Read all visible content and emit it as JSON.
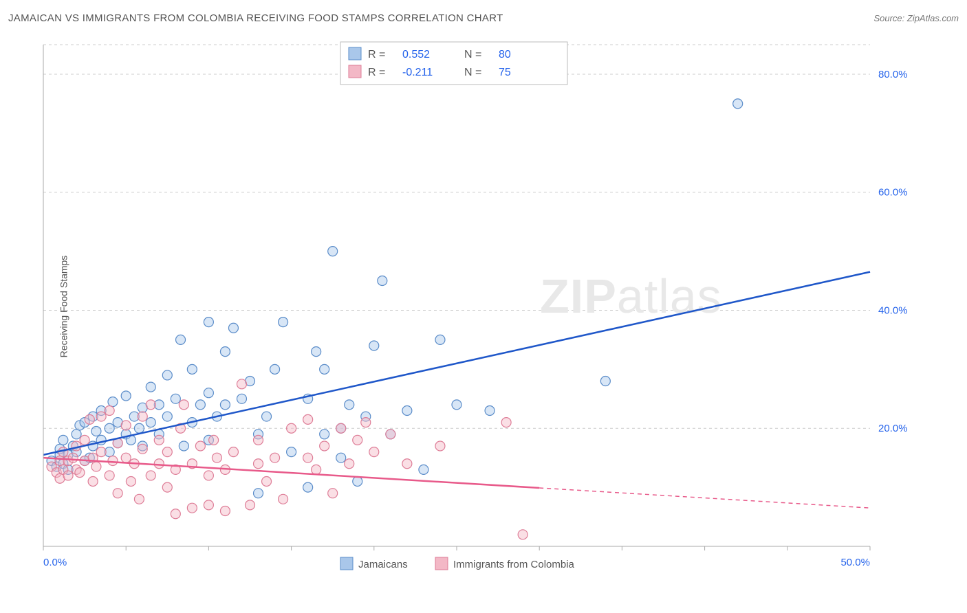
{
  "title": "JAMAICAN VS IMMIGRANTS FROM COLOMBIA RECEIVING FOOD STAMPS CORRELATION CHART",
  "source": "Source: ZipAtlas.com",
  "watermark": {
    "bold": "ZIP",
    "rest": "atlas"
  },
  "y_axis_label": "Receiving Food Stamps",
  "chart": {
    "type": "scatter",
    "xlim": [
      0,
      50
    ],
    "ylim": [
      0,
      85
    ],
    "x_ticks": [
      0,
      5,
      10,
      15,
      20,
      25,
      30,
      35,
      40,
      45,
      50
    ],
    "x_tick_labels": {
      "0": "0.0%",
      "50": "50.0%"
    },
    "y_ticks": [
      20,
      40,
      60,
      80
    ],
    "y_tick_labels": [
      "20.0%",
      "40.0%",
      "60.0%",
      "80.0%"
    ],
    "grid_color": "#cccccc",
    "background_color": "#ffffff",
    "marker_radius": 7,
    "series": [
      {
        "id": "jamaicans",
        "label": "Jamaicans",
        "color_fill": "#a9c7ea",
        "color_stroke": "#5a8cc9",
        "trend_color": "#1f57c9",
        "R": "0.552",
        "N": "80",
        "trend": {
          "x1": 0,
          "y1": 15.5,
          "x2": 50,
          "y2": 46.5,
          "solid_until_x": 50
        },
        "points": [
          [
            0.5,
            14.5
          ],
          [
            0.8,
            13.5
          ],
          [
            1,
            15.5
          ],
          [
            1,
            16.5
          ],
          [
            1.2,
            14
          ],
          [
            1.2,
            18
          ],
          [
            1.5,
            13
          ],
          [
            1.5,
            15.5
          ],
          [
            1.8,
            17
          ],
          [
            2,
            16
          ],
          [
            2,
            19
          ],
          [
            2.2,
            20.5
          ],
          [
            2.5,
            14.5
          ],
          [
            2.5,
            21
          ],
          [
            2.8,
            15
          ],
          [
            3,
            17
          ],
          [
            3,
            22
          ],
          [
            3.2,
            19.5
          ],
          [
            3.5,
            18
          ],
          [
            3.5,
            23
          ],
          [
            4,
            20
          ],
          [
            4,
            16
          ],
          [
            4.2,
            24.5
          ],
          [
            4.5,
            17.5
          ],
          [
            4.5,
            21
          ],
          [
            5,
            19
          ],
          [
            5,
            25.5
          ],
          [
            5.3,
            18
          ],
          [
            5.5,
            22
          ],
          [
            5.8,
            20
          ],
          [
            6,
            23.5
          ],
          [
            6,
            17
          ],
          [
            6.5,
            27
          ],
          [
            6.5,
            21
          ],
          [
            7,
            24
          ],
          [
            7,
            19
          ],
          [
            7.5,
            29
          ],
          [
            7.5,
            22
          ],
          [
            8,
            25
          ],
          [
            8.3,
            35
          ],
          [
            8.5,
            17
          ],
          [
            9,
            30
          ],
          [
            9,
            21
          ],
          [
            9.5,
            24
          ],
          [
            10,
            38
          ],
          [
            10,
            18
          ],
          [
            10,
            26
          ],
          [
            10.5,
            22
          ],
          [
            11,
            33
          ],
          [
            11,
            24
          ],
          [
            11.5,
            37
          ],
          [
            12,
            25
          ],
          [
            12.5,
            28
          ],
          [
            13,
            19
          ],
          [
            13,
            9
          ],
          [
            13.5,
            22
          ],
          [
            14,
            30
          ],
          [
            14.5,
            38
          ],
          [
            15,
            16
          ],
          [
            16,
            25
          ],
          [
            16,
            10
          ],
          [
            16.5,
            33
          ],
          [
            17,
            19
          ],
          [
            17.5,
            50
          ],
          [
            18,
            20
          ],
          [
            18,
            15
          ],
          [
            18.5,
            24
          ],
          [
            19,
            11
          ],
          [
            19.5,
            22
          ],
          [
            20,
            34
          ],
          [
            20.5,
            45
          ],
          [
            21,
            19
          ],
          [
            22,
            23
          ],
          [
            23,
            13
          ],
          [
            24,
            35
          ],
          [
            25,
            24
          ],
          [
            27,
            23
          ],
          [
            34,
            28
          ],
          [
            42,
            75
          ],
          [
            17,
            30
          ]
        ]
      },
      {
        "id": "colombians",
        "label": "Immigrants from Colombia",
        "color_fill": "#f3b8c6",
        "color_stroke": "#de7d97",
        "trend_color": "#e85a8a",
        "R": "-0.211",
        "N": "75",
        "trend": {
          "x1": 0,
          "y1": 15.0,
          "x2": 50,
          "y2": 6.5,
          "solid_until_x": 30
        },
        "points": [
          [
            0.5,
            13.5
          ],
          [
            0.8,
            12.5
          ],
          [
            1,
            14.5
          ],
          [
            1,
            11.5
          ],
          [
            1.2,
            13
          ],
          [
            1.2,
            16
          ],
          [
            1.5,
            12
          ],
          [
            1.5,
            14.5
          ],
          [
            1.8,
            15
          ],
          [
            2,
            13
          ],
          [
            2,
            17
          ],
          [
            2.2,
            12.5
          ],
          [
            2.5,
            14.5
          ],
          [
            2.5,
            18
          ],
          [
            2.8,
            21.5
          ],
          [
            3,
            15
          ],
          [
            3,
            11
          ],
          [
            3.2,
            13.5
          ],
          [
            3.5,
            22
          ],
          [
            3.5,
            16
          ],
          [
            4,
            23
          ],
          [
            4,
            12
          ],
          [
            4.2,
            14.5
          ],
          [
            4.5,
            17.5
          ],
          [
            4.5,
            9
          ],
          [
            5,
            15
          ],
          [
            5,
            20.5
          ],
          [
            5.3,
            11
          ],
          [
            5.5,
            14
          ],
          [
            5.8,
            8
          ],
          [
            6,
            16.5
          ],
          [
            6,
            22
          ],
          [
            6.5,
            12
          ],
          [
            6.5,
            24
          ],
          [
            7,
            14
          ],
          [
            7,
            18
          ],
          [
            7.5,
            10
          ],
          [
            7.5,
            16
          ],
          [
            8,
            13
          ],
          [
            8.3,
            20
          ],
          [
            8.5,
            24
          ],
          [
            9,
            14
          ],
          [
            9,
            6.5
          ],
          [
            9.5,
            17
          ],
          [
            10,
            7
          ],
          [
            10,
            12
          ],
          [
            10.3,
            18
          ],
          [
            10.5,
            15
          ],
          [
            11,
            6
          ],
          [
            11,
            13
          ],
          [
            11.5,
            16
          ],
          [
            12,
            27.5
          ],
          [
            12.5,
            7
          ],
          [
            13,
            14
          ],
          [
            13,
            18
          ],
          [
            13.5,
            11
          ],
          [
            14,
            15
          ],
          [
            14.5,
            8
          ],
          [
            15,
            20
          ],
          [
            16,
            15
          ],
          [
            16,
            21.5
          ],
          [
            16.5,
            13
          ],
          [
            17,
            17
          ],
          [
            17.5,
            9
          ],
          [
            18,
            20
          ],
          [
            18.5,
            14
          ],
          [
            19,
            18
          ],
          [
            19.5,
            21
          ],
          [
            20,
            16
          ],
          [
            21,
            19
          ],
          [
            22,
            14
          ],
          [
            24,
            17
          ],
          [
            28,
            21
          ],
          [
            29,
            2
          ],
          [
            8,
            5.5
          ]
        ]
      }
    ],
    "legend_top": {
      "box_stroke": "#bbbbbb",
      "box_fill": "#ffffff",
      "r_label": "R  =",
      "n_label": "N  =",
      "value_color": "#2563eb",
      "label_color": "#555555"
    },
    "legend_bottom": {
      "label_color": "#555555"
    }
  }
}
